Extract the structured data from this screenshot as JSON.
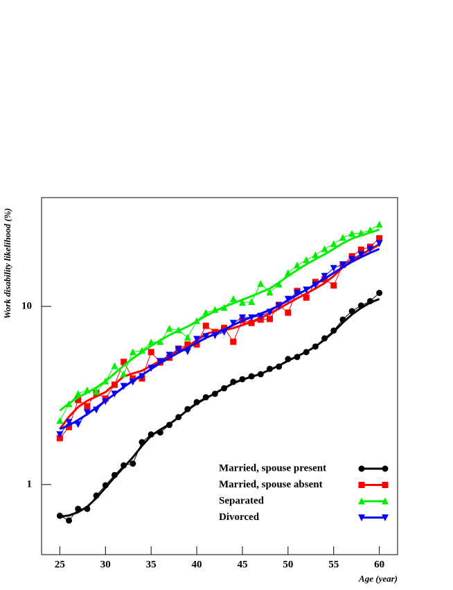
{
  "chart_data": {
    "type": "line",
    "ylabel": "Work disability likelihood (%)",
    "xlabel": "Age (year)",
    "xlim": [
      23,
      62
    ],
    "ylim": [
      0.404,
      40.8
    ],
    "log_y": true,
    "xticks": [
      25,
      30,
      35,
      40,
      45,
      50,
      55,
      60
    ],
    "yticks": [
      1,
      10
    ],
    "x": [
      25,
      26,
      27,
      28,
      29,
      30,
      31,
      32,
      33,
      34,
      35,
      36,
      37,
      38,
      39,
      40,
      41,
      42,
      43,
      44,
      45,
      46,
      47,
      48,
      49,
      50,
      51,
      52,
      53,
      54,
      55,
      56,
      57,
      58,
      59,
      60
    ],
    "series": [
      {
        "name": "Married, spouse present",
        "color": "#000000",
        "marker": "circle",
        "values": [
          0.668,
          0.628,
          0.73,
          0.73,
          0.867,
          0.99,
          1.13,
          1.28,
          1.31,
          1.73,
          1.91,
          1.96,
          2.16,
          2.39,
          2.65,
          2.9,
          3.09,
          3.23,
          3.47,
          3.77,
          3.9,
          4.05,
          4.16,
          4.46,
          4.59,
          5.06,
          5.2,
          5.54,
          5.95,
          6.62,
          7.31,
          8.43,
          9.4,
          10.1,
          10.7,
          11.9
        ],
        "fit": [
          0.66,
          0.67,
          0.7,
          0.75,
          0.84,
          0.96,
          1.1,
          1.25,
          1.42,
          1.65,
          1.88,
          2.03,
          2.18,
          2.38,
          2.62,
          2.85,
          3.05,
          3.25,
          3.47,
          3.7,
          3.88,
          4.02,
          4.18,
          4.4,
          4.65,
          4.95,
          5.25,
          5.55,
          5.95,
          6.5,
          7.2,
          8.1,
          9.0,
          9.8,
          10.5,
          11.0
        ]
      },
      {
        "name": "Married, spouse absent",
        "color": "#ff0000",
        "marker": "square",
        "values": [
          1.82,
          2.1,
          2.98,
          2.75,
          3.26,
          3.04,
          3.63,
          4.88,
          3.94,
          3.94,
          5.54,
          4.84,
          5.15,
          5.79,
          6.11,
          6.11,
          7.78,
          7.18,
          7.57,
          6.33,
          8.36,
          8.07,
          8.43,
          8.5,
          10.2,
          9.22,
          12.2,
          11.2,
          13.7,
          14.2,
          13.1,
          17.1,
          19.1,
          20.8,
          21.6,
          24.1
        ],
        "fit": [
          2.05,
          2.4,
          2.72,
          2.95,
          3.12,
          3.3,
          3.65,
          4.05,
          4.2,
          4.35,
          4.65,
          4.95,
          5.25,
          5.6,
          5.95,
          6.45,
          7.0,
          7.25,
          7.35,
          7.55,
          7.85,
          8.2,
          8.6,
          9.1,
          9.7,
          10.4,
          11.1,
          11.8,
          12.6,
          13.5,
          14.8,
          16.6,
          18.2,
          19.5,
          20.8,
          22.2
        ]
      },
      {
        "name": "Separated",
        "color": "#00ee00",
        "marker": "triangle-up",
        "values": [
          2.28,
          2.83,
          3.23,
          3.38,
          3.32,
          3.8,
          4.63,
          4.16,
          5.54,
          5.64,
          6.28,
          6.33,
          7.5,
          7.36,
          6.68,
          8.28,
          9.22,
          9.57,
          9.82,
          11.0,
          10.5,
          10.6,
          13.4,
          12.0,
          13.3,
          15.4,
          17.0,
          18.2,
          19.4,
          21.0,
          22.4,
          24.3,
          25.6,
          25.8,
          26.8,
          28.8
        ],
        "fit": [
          2.6,
          2.85,
          3.08,
          3.28,
          3.5,
          3.8,
          4.2,
          4.65,
          5.1,
          5.55,
          6.0,
          6.45,
          6.9,
          7.3,
          7.7,
          8.25,
          8.85,
          9.4,
          9.95,
          10.4,
          10.9,
          11.4,
          12.0,
          12.6,
          13.6,
          14.8,
          16.0,
          17.2,
          18.4,
          19.6,
          21.0,
          22.6,
          24.0,
          25.0,
          26.0,
          27.0
        ]
      },
      {
        "name": "Divorced",
        "color": "#0000ff",
        "marker": "triangle-down",
        "values": [
          1.91,
          2.24,
          2.18,
          2.54,
          2.63,
          2.93,
          3.23,
          3.57,
          3.77,
          4.05,
          4.51,
          4.93,
          5.34,
          5.74,
          5.59,
          6.56,
          6.8,
          6.87,
          7.18,
          8.07,
          8.66,
          8.66,
          8.84,
          9.31,
          10.1,
          11.0,
          11.9,
          12.4,
          13.2,
          14.8,
          16.4,
          17.2,
          18.4,
          19.6,
          21.0,
          22.6
        ],
        "fit": [
          2.05,
          2.15,
          2.3,
          2.48,
          2.7,
          2.95,
          3.22,
          3.52,
          3.82,
          4.12,
          4.45,
          4.8,
          5.15,
          5.5,
          5.85,
          6.25,
          6.65,
          7.0,
          7.4,
          7.85,
          8.3,
          8.7,
          9.1,
          9.55,
          10.1,
          10.8,
          11.6,
          12.4,
          13.3,
          14.3,
          15.4,
          16.6,
          17.8,
          18.9,
          20.0,
          21.0
        ]
      }
    ]
  }
}
